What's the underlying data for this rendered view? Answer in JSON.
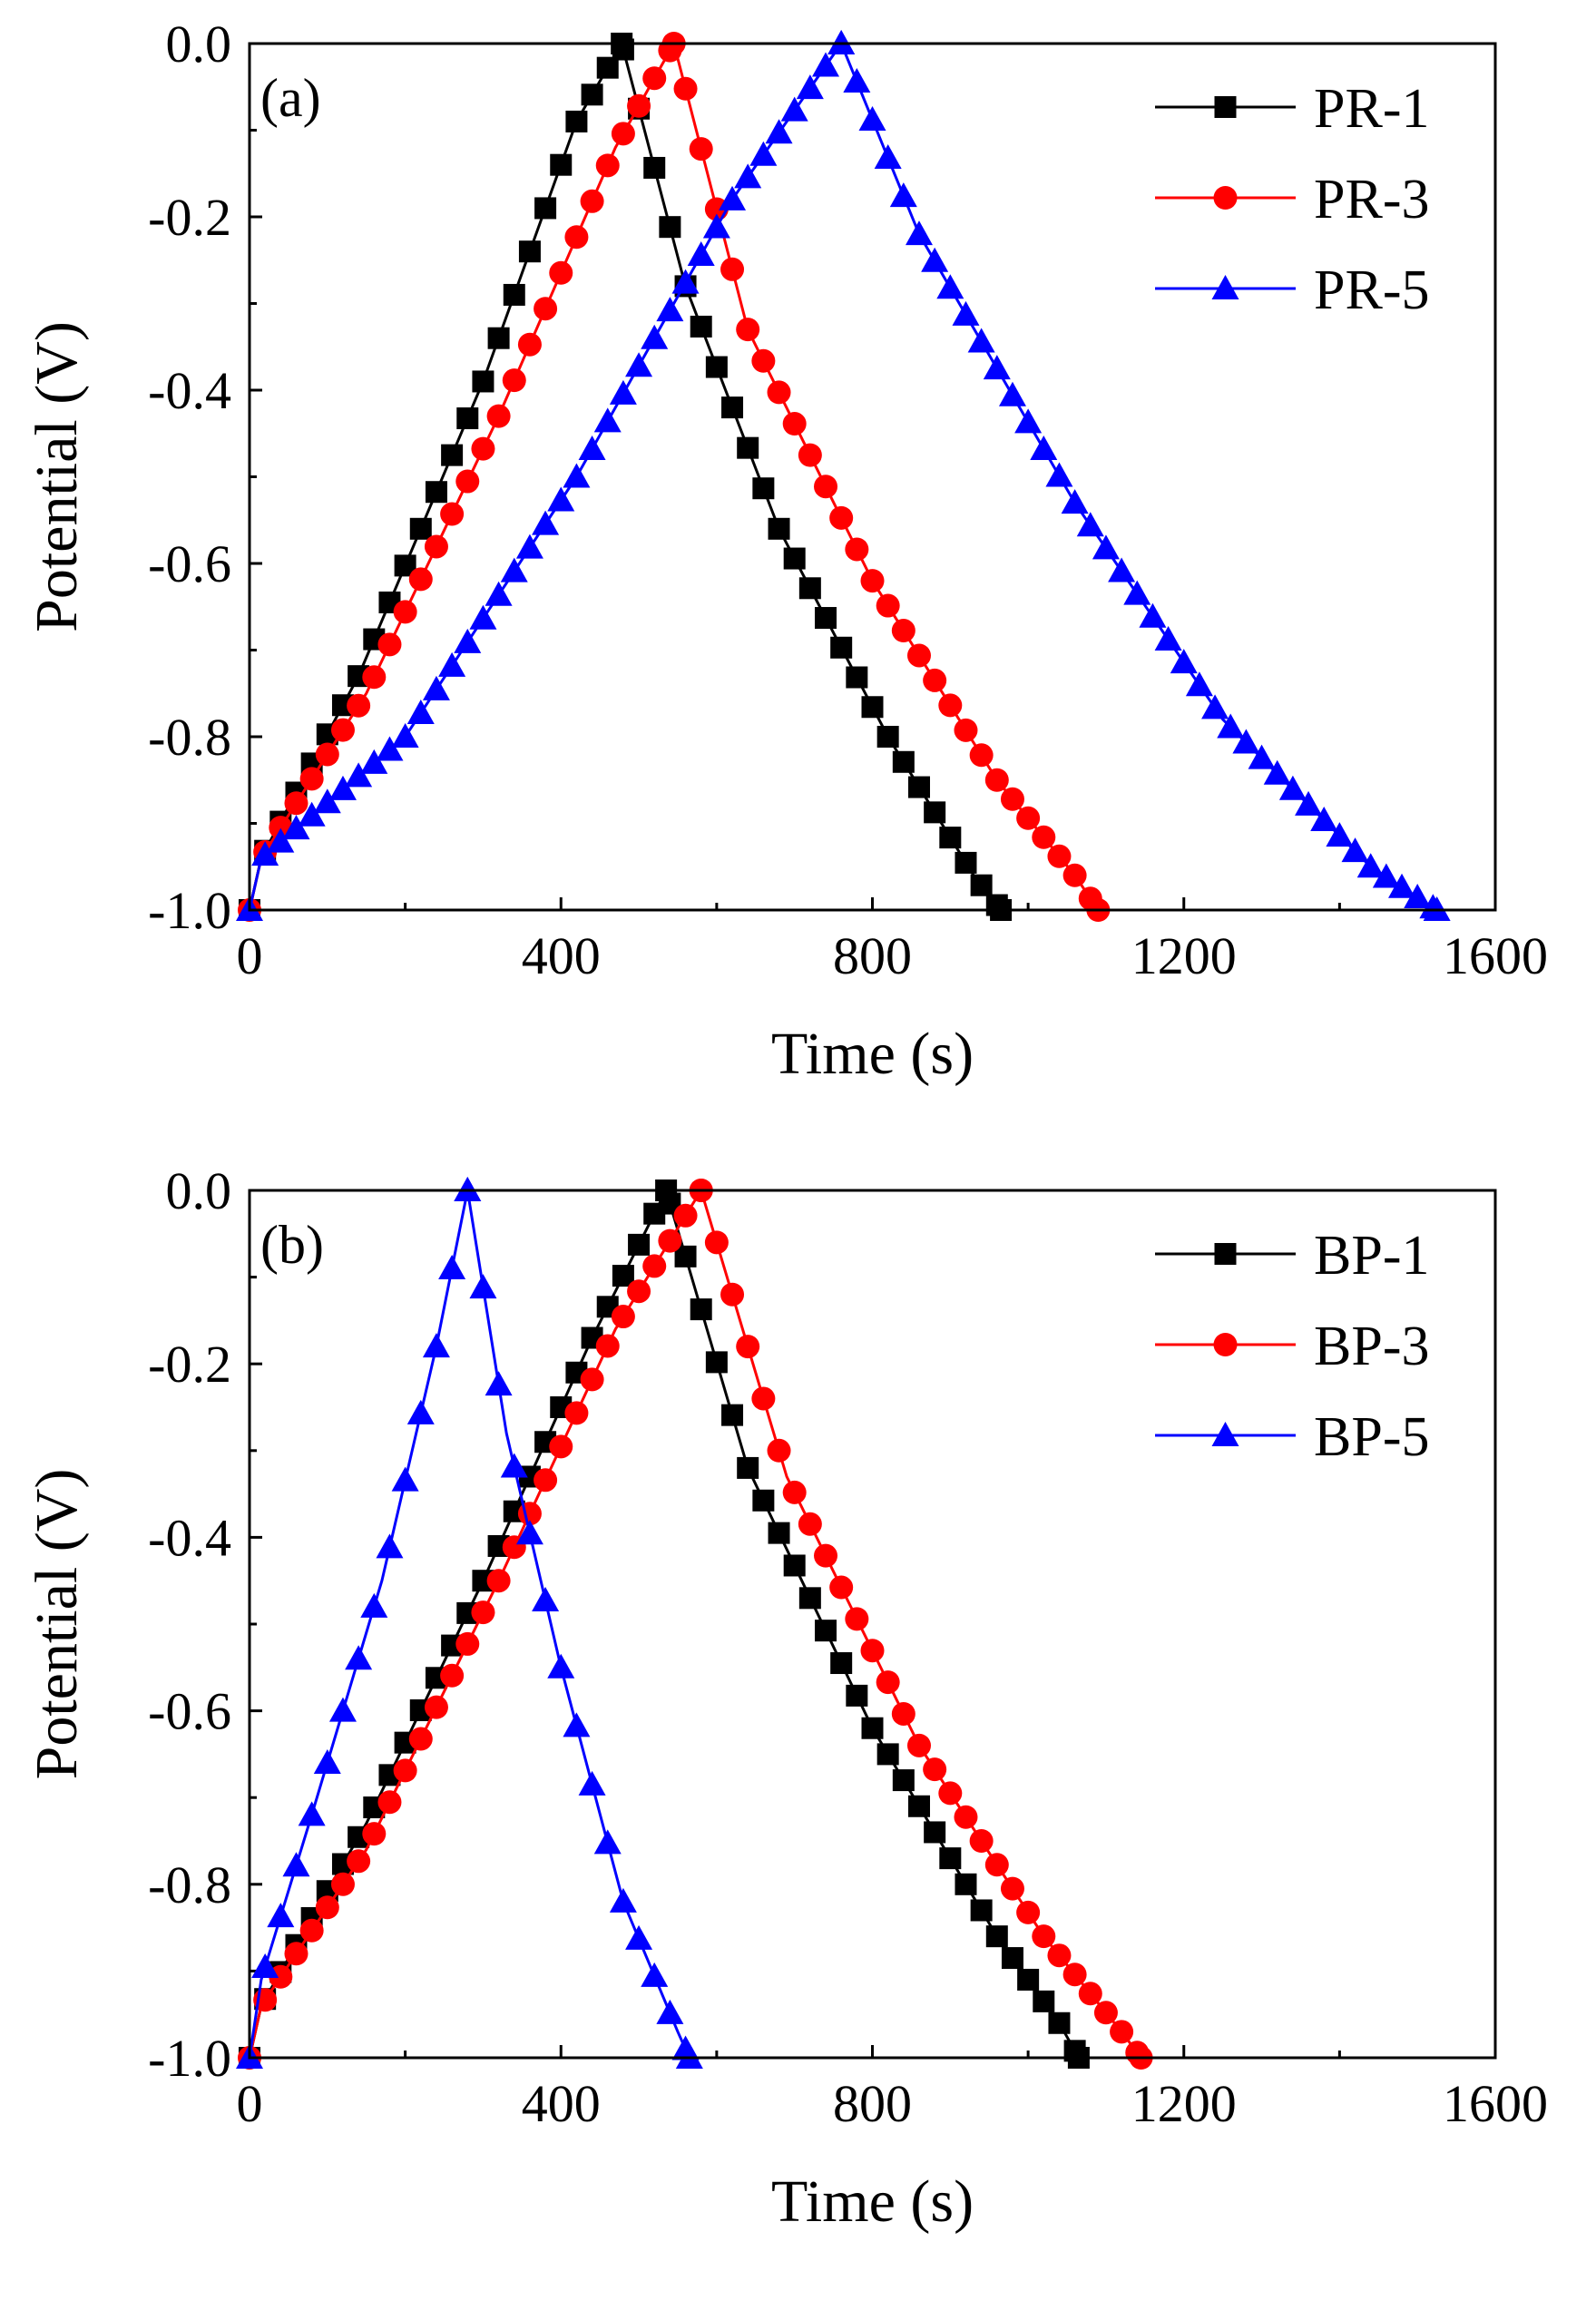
{
  "chart_data": [
    {
      "type": "line",
      "panel_label": "(a)",
      "xlabel": "Time (s)",
      "ylabel": "Potential (V)",
      "xlim": [
        0,
        1600
      ],
      "ylim": [
        -1.0,
        0.0
      ],
      "xticks": [
        0,
        400,
        800,
        1200,
        1600
      ],
      "yticks": [
        0.0,
        -0.2,
        -0.4,
        -0.6,
        -0.8,
        -1.0
      ],
      "xtick_labels": [
        "0",
        "400",
        "800",
        "1200",
        "1600"
      ],
      "ytick_labels": [
        "0.0",
        "-0.2",
        "-0.4",
        "-0.6",
        "-0.8",
        "-1.0"
      ],
      "legend_position": "top-right",
      "series": [
        {
          "name": "PR-1",
          "color": "#000000",
          "marker": "square",
          "points": [
            [
              0,
              -1.0
            ],
            [
              15,
              -0.94
            ],
            [
              140,
              -0.73
            ],
            [
              300,
              -0.39
            ],
            [
              420,
              -0.09
            ],
            [
              478,
              0.0
            ],
            [
              560,
              -0.28
            ],
            [
              680,
              -0.56
            ],
            [
              820,
              -0.8
            ],
            [
              930,
              -0.96
            ],
            [
              965,
              -1.0
            ]
          ]
        },
        {
          "name": "PR-3",
          "color": "#ff0000",
          "marker": "circle",
          "points": [
            [
              0,
              -1.0
            ],
            [
              15,
              -0.94
            ],
            [
              150,
              -0.75
            ],
            [
              320,
              -0.43
            ],
            [
              470,
              -0.12
            ],
            [
              545,
              0.0
            ],
            [
              640,
              -0.33
            ],
            [
              800,
              -0.62
            ],
            [
              960,
              -0.85
            ],
            [
              1060,
              -0.96
            ],
            [
              1090,
              -1.0
            ]
          ]
        },
        {
          "name": "PR-5",
          "color": "#0000ff",
          "marker": "triangle",
          "points": [
            [
              0,
              -1.0
            ],
            [
              15,
              -0.94
            ],
            [
              200,
              -0.8
            ],
            [
              420,
              -0.5
            ],
            [
              620,
              -0.18
            ],
            [
              760,
              0.0
            ],
            [
              860,
              -0.22
            ],
            [
              1060,
              -0.53
            ],
            [
              1250,
              -0.78
            ],
            [
              1440,
              -0.95
            ],
            [
              1525,
              -1.0
            ]
          ]
        }
      ]
    },
    {
      "type": "line",
      "panel_label": "(b)",
      "xlabel": "Time (s)",
      "ylabel": "Potential (V)",
      "xlim": [
        0,
        1600
      ],
      "ylim": [
        -1.0,
        0.0
      ],
      "xticks": [
        0,
        400,
        800,
        1200,
        1600
      ],
      "yticks": [
        0.0,
        -0.2,
        -0.4,
        -0.6,
        -0.8,
        -1.0
      ],
      "xtick_labels": [
        "0",
        "400",
        "800",
        "1200",
        "1600"
      ],
      "ytick_labels": [
        "0.0",
        "-0.2",
        "-0.4",
        "-0.6",
        "-0.8",
        "-1.0"
      ],
      "legend_position": "top-right",
      "series": [
        {
          "name": "BP-1",
          "color": "#000000",
          "marker": "square",
          "points": [
            [
              0,
              -1.0
            ],
            [
              15,
              -0.94
            ],
            [
              150,
              -0.73
            ],
            [
              300,
              -0.45
            ],
            [
              440,
              -0.17
            ],
            [
              535,
              0.0
            ],
            [
              640,
              -0.32
            ],
            [
              800,
              -0.62
            ],
            [
              960,
              -0.86
            ],
            [
              1040,
              -0.96
            ],
            [
              1065,
              -1.0
            ]
          ]
        },
        {
          "name": "BP-3",
          "color": "#ff0000",
          "marker": "circle",
          "points": [
            [
              0,
              -1.0
            ],
            [
              15,
              -0.94
            ],
            [
              150,
              -0.76
            ],
            [
              320,
              -0.45
            ],
            [
              470,
              -0.16
            ],
            [
              580,
              0.0
            ],
            [
              690,
              -0.33
            ],
            [
              860,
              -0.64
            ],
            [
              1020,
              -0.86
            ],
            [
              1120,
              -0.97
            ],
            [
              1145,
              -1.0
            ]
          ]
        },
        {
          "name": "BP-5",
          "color": "#0000ff",
          "marker": "triangle",
          "points": [
            [
              0,
              -1.0
            ],
            [
              15,
              -0.91
            ],
            [
              80,
              -0.72
            ],
            [
              170,
              -0.45
            ],
            [
              240,
              -0.18
            ],
            [
              280,
              0.0
            ],
            [
              330,
              -0.28
            ],
            [
              400,
              -0.55
            ],
            [
              480,
              -0.82
            ],
            [
              550,
              -0.97
            ],
            [
              565,
              -1.0
            ]
          ]
        }
      ]
    }
  ]
}
